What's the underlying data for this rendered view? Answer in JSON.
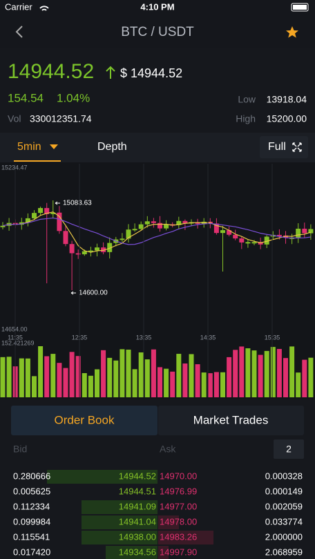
{
  "status_bar": {
    "carrier": "Carrier",
    "time": "4:10 PM"
  },
  "nav": {
    "title": "BTC / USDT"
  },
  "ticker": {
    "price": "14944.52",
    "usd_price": "$ 14944.52",
    "change": "154.54",
    "change_pct": "1.04%",
    "vol_label": "Vol",
    "vol": "330012351.74",
    "low_label": "Low",
    "low": "13918.04",
    "high_label": "High",
    "high": "15200.00"
  },
  "chart_tabs": {
    "interval": "5min",
    "depth": "Depth",
    "full": "Full"
  },
  "kline": {
    "max_label": "15234.47",
    "min_label": "14654.00",
    "high_marker": "15083.63",
    "low_marker": "14600.00",
    "times": [
      "11:35",
      "12:35",
      "13:35",
      "14:35",
      "15:35"
    ],
    "volume_max": "152.421269"
  },
  "book_tabs": [
    "Order Book",
    "Market Trades"
  ],
  "order_book": {
    "bid_header": "Bid",
    "ask_header": "Ask",
    "depth": "2",
    "rows": [
      [
        "0.280666",
        "14944.52",
        "14970.00",
        "0.000328"
      ],
      [
        "0.005625",
        "14944.51",
        "14976.99",
        "0.000149"
      ],
      [
        "0.112334",
        "14941.09",
        "14977.00",
        "0.002059"
      ],
      [
        "0.099984",
        "14941.04",
        "14978.00",
        "0.033774"
      ],
      [
        "0.115541",
        "14938.00",
        "14983.26",
        "2.000000"
      ],
      [
        "0.017420",
        "14934.56",
        "14997.90",
        "2.068959"
      ]
    ]
  }
}
